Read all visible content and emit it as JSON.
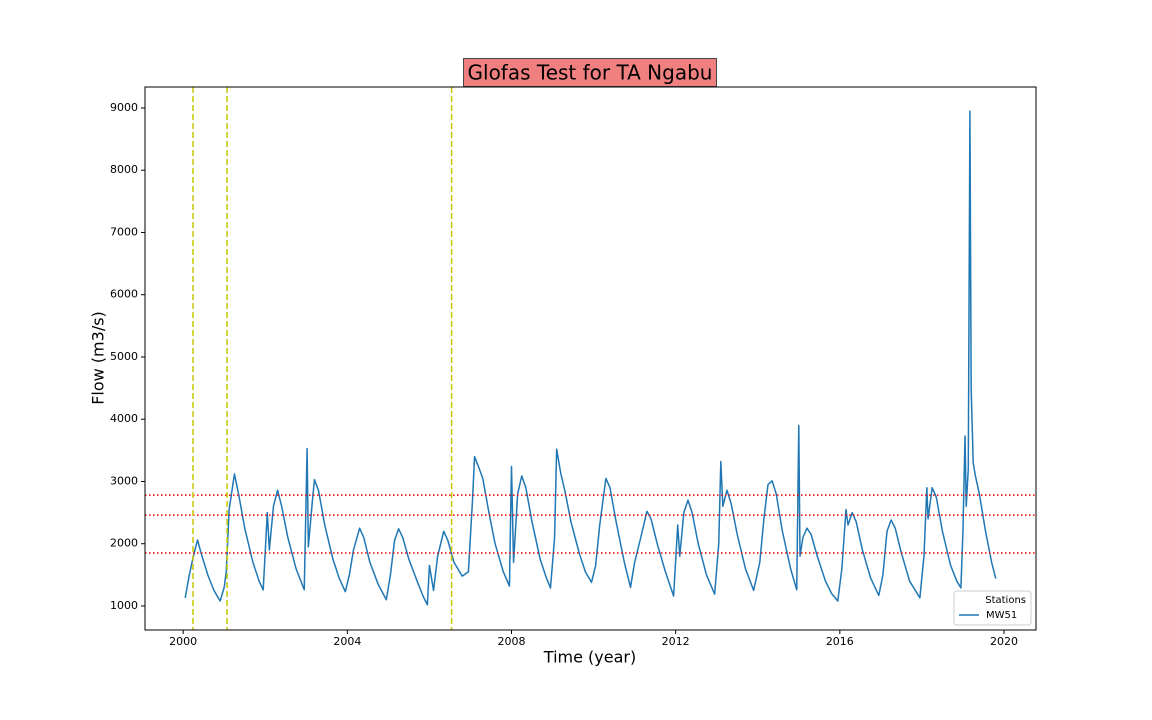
{
  "chart_data": {
    "type": "line",
    "title": "Glofas Test for TA Ngabu",
    "x_label": "Time (year)",
    "y_label": "Flow (m3/s)",
    "legend_title": "Stations",
    "legend": "lower right",
    "xlim": [
      1999.07,
      2020.78
    ],
    "ylim": [
      614,
      9337
    ],
    "xticks": [
      2000,
      2004,
      2008,
      2012,
      2016,
      2020
    ],
    "yticks": [
      1000,
      2000,
      3000,
      4000,
      5000,
      6000,
      7000,
      8000,
      9000
    ],
    "hlines": [
      2780,
      2460,
      1850
    ],
    "hline_color": "#ff0000",
    "vlines": [
      2000.24,
      2001.07,
      2006.54
    ],
    "vline_color": "#c8c800",
    "x": [
      2000.05,
      2000.15,
      2000.25,
      2000.35,
      2000.45,
      2000.6,
      2000.75,
      2000.9,
      2001.0,
      2001.05,
      2001.12,
      2001.25,
      2001.35,
      2001.5,
      2001.7,
      2001.85,
      2001.95,
      2002.05,
      2002.1,
      2002.2,
      2002.3,
      2002.4,
      2002.55,
      2002.75,
      2002.95,
      2003.02,
      2003.05,
      2003.15,
      2003.2,
      2003.3,
      2003.45,
      2003.65,
      2003.8,
      2003.95,
      2004.05,
      2004.15,
      2004.3,
      2004.4,
      2004.55,
      2004.75,
      2004.95,
      2005.05,
      2005.15,
      2005.25,
      2005.35,
      2005.5,
      2005.7,
      2005.85,
      2005.95,
      2006.0,
      2006.1,
      2006.2,
      2006.35,
      2006.45,
      2006.6,
      2006.8,
      2006.95,
      2007.05,
      2007.1,
      2007.2,
      2007.3,
      2007.45,
      2007.6,
      2007.8,
      2007.95,
      2008.0,
      2008.05,
      2008.15,
      2008.25,
      2008.35,
      2008.5,
      2008.7,
      2008.85,
      2008.95,
      2009.05,
      2009.1,
      2009.2,
      2009.3,
      2009.45,
      2009.65,
      2009.8,
      2009.95,
      2010.05,
      2010.15,
      2010.3,
      2010.4,
      2010.55,
      2010.75,
      2010.9,
      2011.0,
      2011.15,
      2011.3,
      2011.4,
      2011.55,
      2011.75,
      2011.95,
      2012.05,
      2012.1,
      2012.2,
      2012.3,
      2012.4,
      2012.55,
      2012.75,
      2012.95,
      2013.05,
      2013.1,
      2013.15,
      2013.25,
      2013.35,
      2013.5,
      2013.7,
      2013.9,
      2014.05,
      2014.15,
      2014.25,
      2014.35,
      2014.45,
      2014.6,
      2014.8,
      2014.95,
      2015.0,
      2015.03,
      2015.1,
      2015.2,
      2015.3,
      2015.45,
      2015.65,
      2015.8,
      2015.95,
      2016.05,
      2016.15,
      2016.2,
      2016.3,
      2016.4,
      2016.55,
      2016.75,
      2016.95,
      2017.05,
      2017.15,
      2017.25,
      2017.35,
      2017.5,
      2017.7,
      2017.95,
      2018.05,
      2018.12,
      2018.15,
      2018.25,
      2018.35,
      2018.5,
      2018.7,
      2018.85,
      2018.95,
      2019.0,
      2019.05,
      2019.08,
      2019.13,
      2019.17,
      2019.2,
      2019.25,
      2019.3,
      2019.4,
      2019.55,
      2019.7,
      2019.8
    ],
    "series": [
      {
        "name": "MW51",
        "color": "#1f77b4",
        "values": [
          1130,
          1500,
          1800,
          2060,
          1820,
          1500,
          1250,
          1080,
          1300,
          1550,
          2550,
          3120,
          2800,
          2250,
          1700,
          1400,
          1260,
          2500,
          1900,
          2600,
          2860,
          2600,
          2100,
          1600,
          1260,
          3530,
          1950,
          2700,
          3030,
          2850,
          2300,
          1750,
          1450,
          1230,
          1500,
          1900,
          2250,
          2100,
          1700,
          1350,
          1100,
          1500,
          2050,
          2240,
          2100,
          1750,
          1400,
          1150,
          1020,
          1650,
          1250,
          1800,
          2200,
          2050,
          1700,
          1480,
          1550,
          2700,
          3400,
          3230,
          3050,
          2500,
          2000,
          1550,
          1320,
          3240,
          1700,
          2800,
          3090,
          2900,
          2350,
          1750,
          1450,
          1290,
          2100,
          3520,
          3130,
          2850,
          2350,
          1850,
          1550,
          1380,
          1650,
          2300,
          3050,
          2900,
          2350,
          1700,
          1300,
          1700,
          2100,
          2520,
          2400,
          2000,
          1550,
          1160,
          2300,
          1800,
          2500,
          2700,
          2500,
          2000,
          1500,
          1190,
          2000,
          3320,
          2600,
          2860,
          2650,
          2150,
          1600,
          1250,
          1700,
          2400,
          2950,
          3010,
          2800,
          2200,
          1600,
          1260,
          3900,
          1800,
          2100,
          2250,
          2150,
          1800,
          1400,
          1200,
          1080,
          1600,
          2550,
          2300,
          2500,
          2350,
          1900,
          1450,
          1170,
          1500,
          2200,
          2380,
          2250,
          1850,
          1400,
          1130,
          1800,
          2900,
          2400,
          2900,
          2750,
          2200,
          1650,
          1400,
          1290,
          2200,
          3730,
          2600,
          3200,
          8950,
          4500,
          3300,
          3100,
          2800,
          2200,
          1700,
          1440
        ]
      }
    ]
  }
}
